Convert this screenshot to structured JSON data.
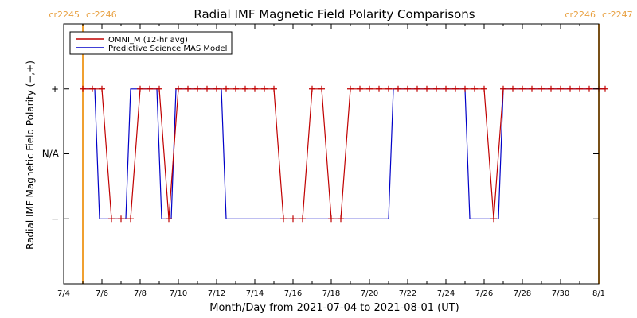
{
  "chart_data": {
    "type": "line",
    "title": "Radial IMF Magnetic Field Polarity Comparisons",
    "xlabel": "Month/Day from 2021-07-04 to 2021-08-01 (UT)",
    "ylabel": "Radial IMF Magnetic Field Polarity (−,+)",
    "x_range": [
      "2021-07-04",
      "2021-08-01"
    ],
    "x_ticks": [
      {
        "date": "2021-07-04",
        "label": "7/4"
      },
      {
        "date": "2021-07-06",
        "label": "7/6"
      },
      {
        "date": "2021-07-08",
        "label": "7/8"
      },
      {
        "date": "2021-07-10",
        "label": "7/10"
      },
      {
        "date": "2021-07-12",
        "label": "7/12"
      },
      {
        "date": "2021-07-14",
        "label": "7/14"
      },
      {
        "date": "2021-07-16",
        "label": "7/16"
      },
      {
        "date": "2021-07-18",
        "label": "7/18"
      },
      {
        "date": "2021-07-20",
        "label": "7/20"
      },
      {
        "date": "2021-07-22",
        "label": "7/22"
      },
      {
        "date": "2021-07-24",
        "label": "7/24"
      },
      {
        "date": "2021-07-26",
        "label": "7/26"
      },
      {
        "date": "2021-07-28",
        "label": "7/28"
      },
      {
        "date": "2021-07-30",
        "label": "7/30"
      },
      {
        "date": "2021-08-01",
        "label": "8/1"
      }
    ],
    "y_ticks": [
      {
        "value": 1,
        "label": "+"
      },
      {
        "value": 0,
        "label": "N/A"
      },
      {
        "value": -1,
        "label": "−"
      }
    ],
    "ylim": [
      -2,
      2
    ],
    "legend": {
      "placement": "top-left"
    },
    "carrington_markers": [
      {
        "date": "2021-07-05T00:00",
        "labels": [
          "cr2245",
          "cr2246"
        ]
      },
      {
        "date": "2021-08-01T00:00",
        "labels": [
          "cr2246",
          "cr2247"
        ]
      }
    ],
    "marker_color": "#f0a030",
    "series": [
      {
        "name": "OMNI_M (12-hr avg)",
        "color": "#c00000",
        "marker": "plus",
        "points": [
          {
            "date": "2021-07-05T00:00",
            "y": 1
          },
          {
            "date": "2021-07-05T12:00",
            "y": 1
          },
          {
            "date": "2021-07-06T00:00",
            "y": 1
          },
          {
            "date": "2021-07-06T12:00",
            "y": -1
          },
          {
            "date": "2021-07-07T00:00",
            "y": -1
          },
          {
            "date": "2021-07-07T12:00",
            "y": -1
          },
          {
            "date": "2021-07-08T00:00",
            "y": 1
          },
          {
            "date": "2021-07-08T12:00",
            "y": 1
          },
          {
            "date": "2021-07-09T00:00",
            "y": 1
          },
          {
            "date": "2021-07-09T12:00",
            "y": -1
          },
          {
            "date": "2021-07-10T00:00",
            "y": 1
          },
          {
            "date": "2021-07-10T12:00",
            "y": 1
          },
          {
            "date": "2021-07-11T00:00",
            "y": 1
          },
          {
            "date": "2021-07-11T12:00",
            "y": 1
          },
          {
            "date": "2021-07-12T00:00",
            "y": 1
          },
          {
            "date": "2021-07-12T12:00",
            "y": 1
          },
          {
            "date": "2021-07-13T00:00",
            "y": 1
          },
          {
            "date": "2021-07-13T12:00",
            "y": 1
          },
          {
            "date": "2021-07-14T00:00",
            "y": 1
          },
          {
            "date": "2021-07-14T12:00",
            "y": 1
          },
          {
            "date": "2021-07-15T00:00",
            "y": 1
          },
          {
            "date": "2021-07-15T12:00",
            "y": -1
          },
          {
            "date": "2021-07-16T00:00",
            "y": -1
          },
          {
            "date": "2021-07-16T12:00",
            "y": -1
          },
          {
            "date": "2021-07-17T00:00",
            "y": 1
          },
          {
            "date": "2021-07-17T12:00",
            "y": 1
          },
          {
            "date": "2021-07-18T00:00",
            "y": -1
          },
          {
            "date": "2021-07-18T12:00",
            "y": -1
          },
          {
            "date": "2021-07-19T00:00",
            "y": 1
          },
          {
            "date": "2021-07-19T12:00",
            "y": 1
          },
          {
            "date": "2021-07-20T00:00",
            "y": 1
          },
          {
            "date": "2021-07-20T12:00",
            "y": 1
          },
          {
            "date": "2021-07-21T00:00",
            "y": 1
          },
          {
            "date": "2021-07-21T12:00",
            "y": 1
          },
          {
            "date": "2021-07-22T00:00",
            "y": 1
          },
          {
            "date": "2021-07-22T12:00",
            "y": 1
          },
          {
            "date": "2021-07-23T00:00",
            "y": 1
          },
          {
            "date": "2021-07-23T12:00",
            "y": 1
          },
          {
            "date": "2021-07-24T00:00",
            "y": 1
          },
          {
            "date": "2021-07-24T12:00",
            "y": 1
          },
          {
            "date": "2021-07-25T00:00",
            "y": 1
          },
          {
            "date": "2021-07-25T12:00",
            "y": 1
          },
          {
            "date": "2021-07-26T00:00",
            "y": 1
          },
          {
            "date": "2021-07-26T12:00",
            "y": -1
          },
          {
            "date": "2021-07-27T00:00",
            "y": 1
          },
          {
            "date": "2021-07-27T12:00",
            "y": 1
          },
          {
            "date": "2021-07-28T00:00",
            "y": 1
          },
          {
            "date": "2021-07-28T12:00",
            "y": 1
          },
          {
            "date": "2021-07-29T00:00",
            "y": 1
          },
          {
            "date": "2021-07-29T12:00",
            "y": 1
          },
          {
            "date": "2021-07-30T00:00",
            "y": 1
          },
          {
            "date": "2021-07-30T12:00",
            "y": 1
          },
          {
            "date": "2021-07-31T00:00",
            "y": 1
          },
          {
            "date": "2021-07-31T12:00",
            "y": 1
          },
          {
            "date": "2021-08-01T00:00",
            "y": 1
          },
          {
            "date": "2021-08-01T08:00",
            "y": 1
          }
        ]
      },
      {
        "name": "Predictive Science MAS Model",
        "color": "#0000c8",
        "marker": "none",
        "points": [
          {
            "date": "2021-07-05T00:00",
            "y": 1
          },
          {
            "date": "2021-07-05T15:00",
            "y": 1
          },
          {
            "date": "2021-07-05T21:00",
            "y": -1
          },
          {
            "date": "2021-07-07T06:00",
            "y": -1
          },
          {
            "date": "2021-07-07T12:00",
            "y": 1
          },
          {
            "date": "2021-07-08T21:00",
            "y": 1
          },
          {
            "date": "2021-07-09T03:00",
            "y": -1
          },
          {
            "date": "2021-07-09T15:00",
            "y": -1
          },
          {
            "date": "2021-07-09T21:00",
            "y": 1
          },
          {
            "date": "2021-07-12T06:00",
            "y": 1
          },
          {
            "date": "2021-07-12T12:00",
            "y": -1
          },
          {
            "date": "2021-07-21T00:00",
            "y": -1
          },
          {
            "date": "2021-07-21T06:00",
            "y": 1
          },
          {
            "date": "2021-07-25T00:00",
            "y": 1
          },
          {
            "date": "2021-07-25T06:00",
            "y": -1
          },
          {
            "date": "2021-07-26T18:00",
            "y": -1
          },
          {
            "date": "2021-07-27T00:00",
            "y": 1
          },
          {
            "date": "2021-08-01T08:00",
            "y": 1
          }
        ]
      }
    ]
  }
}
